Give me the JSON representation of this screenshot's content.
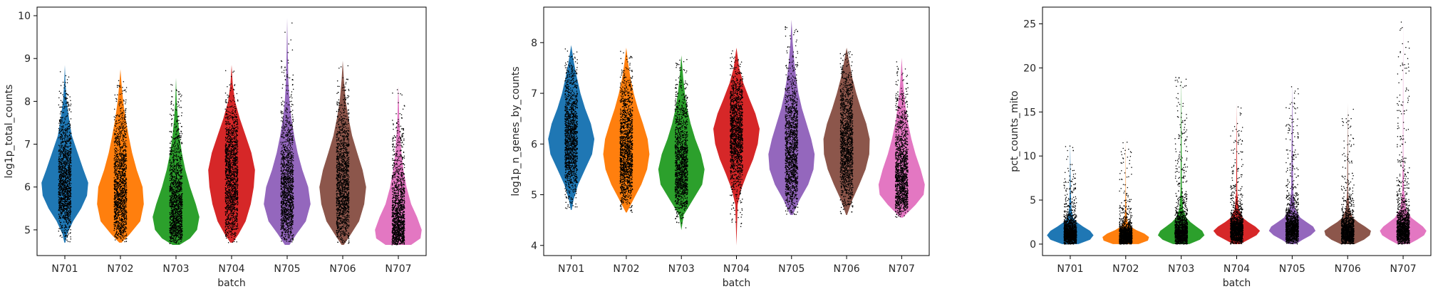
{
  "chart_data": [
    {
      "type": "violin",
      "xlabel": "batch",
      "ylabel": "log1p_total_counts",
      "categories": [
        "N701",
        "N702",
        "N703",
        "N704",
        "N705",
        "N706",
        "N707"
      ],
      "ylim": [
        4.4,
        10.2
      ],
      "yticks": [
        5,
        6,
        7,
        8,
        9,
        10
      ],
      "violins": [
        {
          "min": 4.7,
          "max": 8.85,
          "density": [
            [
              4.7,
              0.02
            ],
            [
              4.9,
              0.1
            ],
            [
              5.2,
              0.35
            ],
            [
              5.5,
              0.7
            ],
            [
              5.8,
              0.95
            ],
            [
              6.1,
              1.0
            ],
            [
              6.4,
              0.8
            ],
            [
              6.8,
              0.55
            ],
            [
              7.2,
              0.3
            ],
            [
              7.6,
              0.18
            ],
            [
              8.0,
              0.08
            ],
            [
              8.4,
              0.03
            ],
            [
              8.85,
              0.0
            ]
          ]
        },
        {
          "min": 4.7,
          "max": 8.75,
          "density": [
            [
              4.7,
              0.05
            ],
            [
              4.9,
              0.4
            ],
            [
              5.2,
              0.85
            ],
            [
              5.6,
              1.0
            ],
            [
              6.0,
              0.95
            ],
            [
              6.4,
              0.7
            ],
            [
              6.8,
              0.5
            ],
            [
              7.2,
              0.35
            ],
            [
              7.6,
              0.22
            ],
            [
              8.0,
              0.12
            ],
            [
              8.4,
              0.05
            ],
            [
              8.75,
              0.0
            ]
          ]
        },
        {
          "min": 4.65,
          "max": 8.55,
          "density": [
            [
              4.65,
              0.15
            ],
            [
              4.8,
              0.6
            ],
            [
              5.0,
              0.9
            ],
            [
              5.3,
              1.0
            ],
            [
              5.6,
              0.85
            ],
            [
              6.0,
              0.6
            ],
            [
              6.4,
              0.4
            ],
            [
              6.8,
              0.25
            ],
            [
              7.2,
              0.15
            ],
            [
              7.6,
              0.08
            ],
            [
              8.0,
              0.03
            ],
            [
              8.55,
              0.0
            ]
          ]
        },
        {
          "min": 4.7,
          "max": 8.85,
          "density": [
            [
              4.7,
              0.05
            ],
            [
              4.9,
              0.3
            ],
            [
              5.2,
              0.6
            ],
            [
              5.6,
              0.82
            ],
            [
              6.0,
              0.95
            ],
            [
              6.4,
              1.0
            ],
            [
              6.8,
              0.85
            ],
            [
              7.2,
              0.6
            ],
            [
              7.6,
              0.35
            ],
            [
              8.0,
              0.15
            ],
            [
              8.4,
              0.05
            ],
            [
              8.85,
              0.0
            ]
          ]
        },
        {
          "min": 4.65,
          "max": 9.95,
          "density": [
            [
              4.65,
              0.1
            ],
            [
              4.9,
              0.4
            ],
            [
              5.2,
              0.8
            ],
            [
              5.6,
              1.0
            ],
            [
              6.0,
              0.9
            ],
            [
              6.4,
              0.65
            ],
            [
              6.8,
              0.45
            ],
            [
              7.2,
              0.3
            ],
            [
              7.6,
              0.18
            ],
            [
              8.0,
              0.1
            ],
            [
              8.5,
              0.05
            ],
            [
              9.2,
              0.02
            ],
            [
              9.95,
              0.0
            ]
          ]
        },
        {
          "min": 4.65,
          "max": 8.95,
          "density": [
            [
              4.65,
              0.05
            ],
            [
              4.9,
              0.35
            ],
            [
              5.2,
              0.7
            ],
            [
              5.6,
              0.92
            ],
            [
              6.0,
              1.0
            ],
            [
              6.4,
              0.85
            ],
            [
              6.8,
              0.62
            ],
            [
              7.2,
              0.4
            ],
            [
              7.6,
              0.25
            ],
            [
              8.0,
              0.13
            ],
            [
              8.5,
              0.05
            ],
            [
              8.95,
              0.0
            ]
          ]
        },
        {
          "min": 4.65,
          "max": 8.35,
          "density": [
            [
              4.65,
              0.55
            ],
            [
              4.8,
              0.95
            ],
            [
              5.0,
              1.0
            ],
            [
              5.3,
              0.8
            ],
            [
              5.6,
              0.55
            ],
            [
              6.0,
              0.35
            ],
            [
              6.4,
              0.22
            ],
            [
              6.8,
              0.13
            ],
            [
              7.2,
              0.08
            ],
            [
              7.6,
              0.04
            ],
            [
              8.0,
              0.02
            ],
            [
              8.35,
              0.0
            ]
          ]
        }
      ]
    },
    {
      "type": "violin",
      "xlabel": "batch",
      "ylabel": "log1p_n_genes_by_counts",
      "categories": [
        "N701",
        "N702",
        "N703",
        "N704",
        "N705",
        "N706",
        "N707"
      ],
      "ylim": [
        3.8,
        8.7
      ],
      "yticks": [
        4,
        5,
        6,
        7,
        8
      ],
      "violins": [
        {
          "min": 4.7,
          "max": 7.95,
          "density": [
            [
              4.7,
              0.02
            ],
            [
              4.9,
              0.1
            ],
            [
              5.2,
              0.3
            ],
            [
              5.5,
              0.6
            ],
            [
              5.8,
              0.9
            ],
            [
              6.1,
              1.0
            ],
            [
              6.4,
              0.85
            ],
            [
              6.7,
              0.6
            ],
            [
              7.0,
              0.4
            ],
            [
              7.3,
              0.25
            ],
            [
              7.6,
              0.12
            ],
            [
              7.95,
              0.0
            ]
          ]
        },
        {
          "min": 4.65,
          "max": 7.9,
          "density": [
            [
              4.65,
              0.02
            ],
            [
              4.9,
              0.3
            ],
            [
              5.2,
              0.65
            ],
            [
              5.5,
              0.9
            ],
            [
              5.8,
              1.0
            ],
            [
              6.1,
              0.92
            ],
            [
              6.4,
              0.72
            ],
            [
              6.7,
              0.5
            ],
            [
              7.0,
              0.32
            ],
            [
              7.3,
              0.18
            ],
            [
              7.6,
              0.08
            ],
            [
              7.9,
              0.0
            ]
          ]
        },
        {
          "min": 4.3,
          "max": 7.75,
          "density": [
            [
              4.3,
              0.0
            ],
            [
              4.6,
              0.1
            ],
            [
              4.9,
              0.5
            ],
            [
              5.2,
              0.9
            ],
            [
              5.5,
              1.0
            ],
            [
              5.8,
              0.85
            ],
            [
              6.1,
              0.6
            ],
            [
              6.4,
              0.4
            ],
            [
              6.7,
              0.25
            ],
            [
              7.0,
              0.15
            ],
            [
              7.3,
              0.08
            ],
            [
              7.75,
              0.0
            ]
          ]
        },
        {
          "min": 4.0,
          "max": 7.9,
          "density": [
            [
              4.0,
              0.0
            ],
            [
              4.8,
              0.05
            ],
            [
              5.1,
              0.2
            ],
            [
              5.4,
              0.45
            ],
            [
              5.7,
              0.72
            ],
            [
              6.0,
              0.92
            ],
            [
              6.3,
              1.0
            ],
            [
              6.6,
              0.82
            ],
            [
              6.9,
              0.55
            ],
            [
              7.2,
              0.3
            ],
            [
              7.5,
              0.12
            ],
            [
              7.9,
              0.0
            ]
          ]
        },
        {
          "min": 4.6,
          "max": 8.45,
          "density": [
            [
              4.6,
              0.05
            ],
            [
              4.9,
              0.35
            ],
            [
              5.2,
              0.72
            ],
            [
              5.5,
              0.95
            ],
            [
              5.8,
              1.0
            ],
            [
              6.1,
              0.85
            ],
            [
              6.4,
              0.65
            ],
            [
              6.7,
              0.45
            ],
            [
              7.0,
              0.3
            ],
            [
              7.3,
              0.2
            ],
            [
              7.6,
              0.12
            ],
            [
              8.0,
              0.05
            ],
            [
              8.45,
              0.0
            ]
          ]
        },
        {
          "min": 4.6,
          "max": 7.9,
          "density": [
            [
              4.6,
              0.02
            ],
            [
              4.9,
              0.25
            ],
            [
              5.2,
              0.55
            ],
            [
              5.5,
              0.82
            ],
            [
              5.8,
              0.98
            ],
            [
              6.1,
              1.0
            ],
            [
              6.4,
              0.85
            ],
            [
              6.7,
              0.62
            ],
            [
              7.0,
              0.42
            ],
            [
              7.3,
              0.25
            ],
            [
              7.6,
              0.12
            ],
            [
              7.9,
              0.0
            ]
          ]
        },
        {
          "min": 4.55,
          "max": 7.7,
          "density": [
            [
              4.55,
              0.05
            ],
            [
              4.8,
              0.6
            ],
            [
              5.0,
              0.95
            ],
            [
              5.2,
              1.0
            ],
            [
              5.5,
              0.82
            ],
            [
              5.8,
              0.6
            ],
            [
              6.1,
              0.42
            ],
            [
              6.4,
              0.28
            ],
            [
              6.7,
              0.18
            ],
            [
              7.0,
              0.1
            ],
            [
              7.3,
              0.05
            ],
            [
              7.7,
              0.0
            ]
          ]
        }
      ]
    },
    {
      "type": "violin",
      "xlabel": "batch",
      "ylabel": "pct_counts_mito",
      "categories": [
        "N701",
        "N702",
        "N703",
        "N704",
        "N705",
        "N706",
        "N707"
      ],
      "ylim": [
        -1.3,
        26.9
      ],
      "yticks": [
        0,
        5,
        10,
        15,
        20,
        25
      ],
      "violins": [
        {
          "min": 0,
          "max": 11.5,
          "density": [
            [
              0.0,
              0.35
            ],
            [
              0.5,
              0.85
            ],
            [
              1.0,
              1.0
            ],
            [
              1.5,
              0.85
            ],
            [
              2.0,
              0.55
            ],
            [
              2.5,
              0.28
            ],
            [
              3.0,
              0.12
            ],
            [
              4.0,
              0.05
            ],
            [
              6.0,
              0.02
            ],
            [
              11.5,
              0.0
            ]
          ]
        },
        {
          "min": 0,
          "max": 12.0,
          "density": [
            [
              0.0,
              0.55
            ],
            [
              0.4,
              0.95
            ],
            [
              0.8,
              1.0
            ],
            [
              1.2,
              0.8
            ],
            [
              1.6,
              0.45
            ],
            [
              2.0,
              0.2
            ],
            [
              2.5,
              0.08
            ],
            [
              3.5,
              0.03
            ],
            [
              6.0,
              0.01
            ],
            [
              12.0,
              0.0
            ]
          ]
        },
        {
          "min": 0,
          "max": 19.0,
          "density": [
            [
              0.0,
              0.35
            ],
            [
              0.5,
              0.8
            ],
            [
              1.0,
              1.0
            ],
            [
              1.5,
              0.9
            ],
            [
              2.0,
              0.65
            ],
            [
              2.5,
              0.4
            ],
            [
              3.0,
              0.22
            ],
            [
              4.0,
              0.08
            ],
            [
              6.0,
              0.03
            ],
            [
              19.0,
              0.0
            ]
          ]
        },
        {
          "min": 0,
          "max": 16.0,
          "density": [
            [
              0.0,
              0.15
            ],
            [
              0.5,
              0.5
            ],
            [
              1.0,
              0.85
            ],
            [
              1.5,
              1.0
            ],
            [
              2.0,
              0.8
            ],
            [
              2.5,
              0.5
            ],
            [
              3.0,
              0.25
            ],
            [
              4.0,
              0.08
            ],
            [
              6.0,
              0.02
            ],
            [
              16.0,
              0.0
            ]
          ]
        },
        {
          "min": 0,
          "max": 18.0,
          "density": [
            [
              0.0,
              0.15
            ],
            [
              0.5,
              0.45
            ],
            [
              1.0,
              0.8
            ],
            [
              1.5,
              1.0
            ],
            [
              2.0,
              0.9
            ],
            [
              2.5,
              0.62
            ],
            [
              3.0,
              0.35
            ],
            [
              4.0,
              0.12
            ],
            [
              6.0,
              0.04
            ],
            [
              18.0,
              0.0
            ]
          ]
        },
        {
          "min": 0,
          "max": 16.0,
          "density": [
            [
              0.0,
              0.3
            ],
            [
              0.5,
              0.7
            ],
            [
              1.0,
              0.95
            ],
            [
              1.5,
              1.0
            ],
            [
              2.0,
              0.75
            ],
            [
              2.5,
              0.45
            ],
            [
              3.0,
              0.22
            ],
            [
              4.0,
              0.07
            ],
            [
              6.0,
              0.02
            ],
            [
              16.0,
              0.0
            ]
          ]
        },
        {
          "min": 0,
          "max": 25.6,
          "density": [
            [
              0.0,
              0.25
            ],
            [
              0.5,
              0.6
            ],
            [
              1.0,
              0.9
            ],
            [
              1.5,
              1.0
            ],
            [
              2.0,
              0.85
            ],
            [
              2.5,
              0.6
            ],
            [
              3.0,
              0.35
            ],
            [
              4.0,
              0.12
            ],
            [
              6.0,
              0.04
            ],
            [
              10.0,
              0.01
            ],
            [
              25.6,
              0.0
            ]
          ]
        }
      ]
    }
  ],
  "colors": {
    "violins": [
      "#1f77b4",
      "#ff7f0e",
      "#2ca02c",
      "#d62728",
      "#9467bd",
      "#8c564b",
      "#e377c2"
    ],
    "points": "#000000",
    "axis": "#000000"
  }
}
